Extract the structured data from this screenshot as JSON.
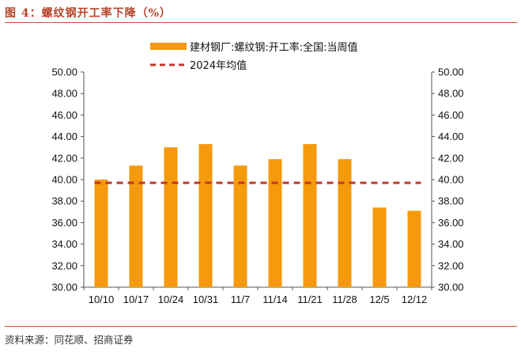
{
  "figure": {
    "title": "图 4：螺纹钢开工率下降（%）",
    "source": "资料来源：同花顺、招商证券"
  },
  "chart_data": {
    "type": "bar",
    "categories": [
      "10/10",
      "10/17",
      "10/24",
      "10/31",
      "11/7",
      "11/14",
      "11/21",
      "11/28",
      "12/5",
      "12/12"
    ],
    "series": [
      {
        "name": "建材钢厂:螺纹钢:开工率:全国:当周值",
        "type": "bar",
        "color": "#f59a0c",
        "values": [
          40.0,
          41.3,
          43.0,
          43.3,
          41.3,
          41.9,
          43.3,
          41.9,
          37.4,
          37.1
        ]
      },
      {
        "name": "2024年均值",
        "type": "line",
        "style": "dashed",
        "color": "#c0392b",
        "values": [
          39.7,
          39.7,
          39.7,
          39.7,
          39.7,
          39.7,
          39.7,
          39.7,
          39.7,
          39.7
        ]
      }
    ],
    "ylim": [
      30,
      50
    ],
    "y_ticks": [
      "30.00",
      "32.00",
      "34.00",
      "36.00",
      "38.00",
      "40.00",
      "42.00",
      "44.00",
      "46.00",
      "48.00",
      "50.00"
    ],
    "y_tick_values": [
      30,
      32,
      34,
      36,
      38,
      40,
      42,
      44,
      46,
      48,
      50
    ],
    "right_axis_mirrors_left": true,
    "legend_position": "top",
    "grid": false
  }
}
